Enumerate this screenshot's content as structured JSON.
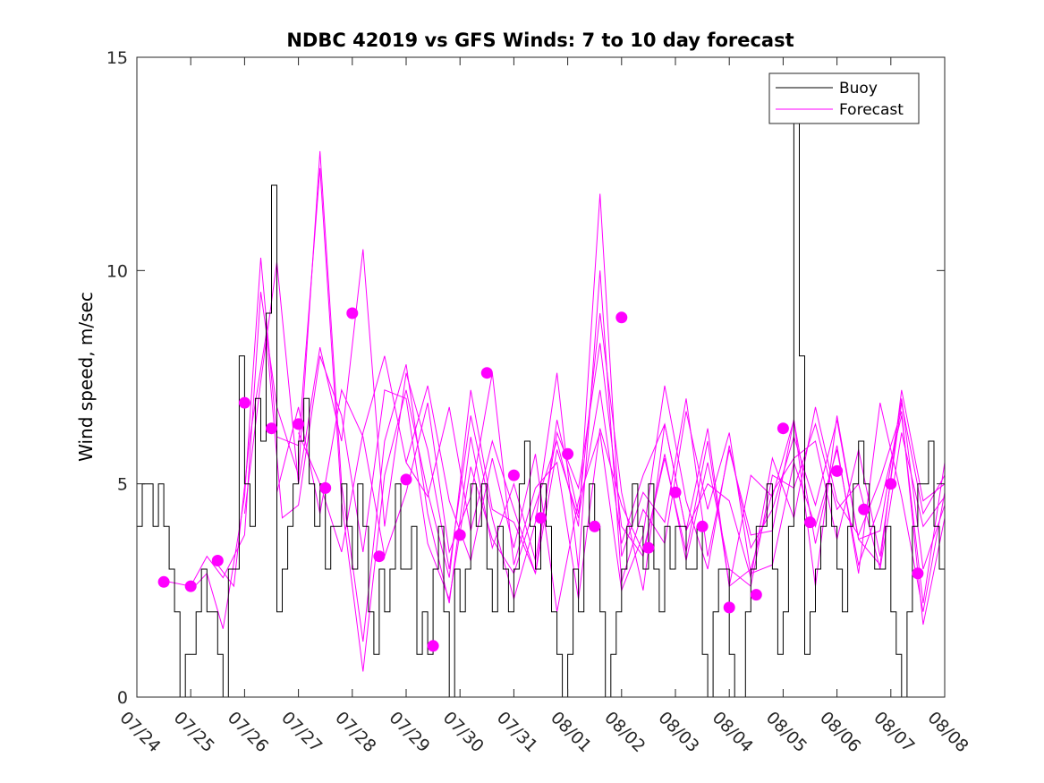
{
  "chart_data": {
    "type": "line",
    "title": "NDBC 42019 vs GFS Winds: 7 to 10 day forecast",
    "xlabel": "",
    "ylabel": "Wind speed, m/sec",
    "ylim": [
      0,
      15
    ],
    "yticks": [
      0,
      5,
      10,
      15
    ],
    "xlim_days": [
      0,
      15
    ],
    "xtick_labels": [
      "07/24",
      "07/25",
      "07/26",
      "07/27",
      "07/28",
      "07/29",
      "07/30",
      "07/31",
      "08/01",
      "08/02",
      "08/03",
      "08/04",
      "08/05",
      "08/06",
      "08/07",
      "08/08"
    ],
    "legend": {
      "placement": "top-right",
      "entries": [
        "Buoy",
        "Forecast"
      ]
    },
    "colors": {
      "buoy": "#000000",
      "forecast": "#ff00ff"
    },
    "series": [
      {
        "name": "Buoy",
        "style": "step",
        "x_days": [
          0.0,
          0.1,
          0.2,
          0.3,
          0.4,
          0.5,
          0.6,
          0.7,
          0.8,
          0.9,
          1.0,
          1.1,
          1.2,
          1.3,
          1.4,
          1.5,
          1.6,
          1.7,
          1.8,
          1.9,
          2.0,
          2.1,
          2.2,
          2.3,
          2.4,
          2.5,
          2.6,
          2.7,
          2.8,
          2.9,
          3.0,
          3.1,
          3.2,
          3.3,
          3.4,
          3.5,
          3.6,
          3.7,
          3.8,
          3.9,
          4.0,
          4.1,
          4.2,
          4.3,
          4.4,
          4.5,
          4.6,
          4.7,
          4.8,
          4.9,
          5.0,
          5.1,
          5.2,
          5.3,
          5.4,
          5.5,
          5.6,
          5.7,
          5.8,
          5.9,
          6.0,
          6.1,
          6.2,
          6.3,
          6.4,
          6.5,
          6.6,
          6.7,
          6.8,
          6.9,
          7.0,
          7.1,
          7.2,
          7.3,
          7.4,
          7.5,
          7.6,
          7.7,
          7.8,
          7.9,
          8.0,
          8.1,
          8.2,
          8.3,
          8.4,
          8.5,
          8.6,
          8.7,
          8.8,
          8.9,
          9.0,
          9.1,
          9.2,
          9.3,
          9.4,
          9.5,
          9.6,
          9.7,
          9.8,
          9.9,
          10.0,
          10.1,
          10.2,
          10.3,
          10.4,
          10.5,
          10.6,
          10.7,
          10.8,
          10.9,
          11.0,
          11.1,
          11.2,
          11.3,
          11.4,
          11.5,
          11.6,
          11.7,
          11.8,
          11.9,
          12.0,
          12.1,
          12.2,
          12.3,
          12.4,
          12.5,
          12.6,
          12.7,
          12.8,
          12.9,
          13.0,
          13.1,
          13.2,
          13.3,
          13.4,
          13.5,
          13.6,
          13.7,
          13.8,
          13.9,
          14.0,
          14.1,
          14.2,
          14.3,
          14.4,
          14.5,
          14.6,
          14.7,
          14.8,
          14.9,
          15.0
        ],
        "values": [
          4,
          5,
          5,
          4,
          5,
          4,
          3,
          2,
          0,
          1,
          1,
          2,
          3,
          2,
          2,
          1,
          0,
          3,
          3,
          8,
          5,
          4,
          7,
          6,
          9,
          12,
          2,
          3,
          4,
          5,
          6,
          7,
          5,
          4,
          5,
          3,
          4,
          4,
          5,
          4,
          3,
          5,
          4,
          2,
          1,
          3,
          2,
          3,
          5,
          3,
          3,
          4,
          1,
          2,
          1,
          3,
          4,
          2,
          0,
          3,
          2,
          3,
          5,
          4,
          5,
          3,
          2,
          4,
          3,
          2,
          3,
          5,
          6,
          4,
          3,
          5,
          4,
          2,
          1,
          0,
          1,
          3,
          2,
          4,
          5,
          4,
          2,
          0,
          1,
          2,
          3,
          4,
          5,
          4,
          3,
          5,
          3,
          2,
          4,
          3,
          4,
          4,
          3,
          3,
          4,
          1,
          0,
          2,
          3,
          3,
          1,
          0,
          0,
          2,
          3,
          4,
          4,
          5,
          3,
          1,
          2,
          4,
          14,
          8,
          1,
          2,
          3,
          4,
          5,
          4,
          3,
          2,
          4,
          5,
          6,
          5,
          4,
          3,
          3,
          4,
          2,
          1,
          0,
          2,
          4,
          5,
          5,
          6,
          4,
          3,
          5
        ]
      },
      {
        "name": "Forecast",
        "style": "line-ensemble",
        "members": [
          {
            "x_days": [
              0.6,
              1.0,
              1.3,
              1.6,
              2.0,
              2.3,
              2.6,
              3.0,
              3.4,
              3.8,
              4.2,
              4.6,
              5.0,
              5.4,
              5.8,
              6.2,
              6.6,
              7.0,
              7.4,
              7.8,
              8.2,
              8.6,
              9.0,
              9.4,
              9.8,
              10.2,
              10.6,
              11.0,
              11.4,
              11.8,
              12.2,
              12.6,
              13.0,
              13.4,
              13.8,
              14.2,
              14.6,
              15.0
            ],
            "values": [
              2.7,
              2.6,
              3.3,
              2.8,
              3.8,
              9.5,
              6.8,
              5.2,
              12.8,
              5.0,
              1.3,
              6.0,
              7.8,
              4.3,
              2.2,
              6.1,
              3.5,
              5.0,
              3.2,
              6.2,
              4.9,
              8.3,
              4.0,
              3.3,
              5.7,
              3.2,
              5.5,
              3.0,
              2.6,
              5.2,
              4.9,
              6.4,
              4.4,
              5.0,
              3.0,
              6.2,
              4.0,
              4.7
            ]
          },
          {
            "x_days": [
              1.0,
              1.3,
              1.6,
              2.0,
              2.3,
              2.6,
              3.0,
              3.4,
              3.8,
              4.2,
              4.6,
              5.0,
              5.4,
              5.8,
              6.2,
              6.6,
              7.0,
              7.4,
              7.8,
              8.2,
              8.6,
              9.0,
              9.4,
              9.8,
              10.2,
              10.6,
              11.0,
              11.4,
              11.8,
              12.2,
              12.6,
              13.0,
              13.4,
              13.8,
              14.2,
              14.6,
              15.0
            ],
            "values": [
              2.5,
              2.9,
              1.6,
              4.7,
              10.3,
              6.1,
              5.9,
              12.4,
              4.6,
              0.6,
              5.2,
              7.2,
              4.8,
              2.8,
              7.2,
              4.4,
              4.1,
              2.9,
              6.5,
              4.3,
              9.0,
              4.8,
              2.5,
              6.4,
              3.9,
              6.3,
              2.6,
              3.0,
              4.8,
              5.6,
              6.0,
              3.7,
              5.8,
              3.3,
              6.9,
              4.3,
              5.2
            ]
          },
          {
            "x_days": [
              1.5,
              1.8,
              2.1,
              2.4,
              2.7,
              3.0,
              3.4,
              3.8,
              4.2,
              4.6,
              5.0,
              5.4,
              5.8,
              6.2,
              6.6,
              7.0,
              7.4,
              7.8,
              8.2,
              8.6,
              9.0,
              9.4,
              9.8,
              10.2,
              10.6,
              11.0,
              11.4,
              11.8,
              12.2,
              12.6,
              13.0,
              13.4,
              13.8,
              14.2,
              14.6,
              15.0
            ],
            "values": [
              3.1,
              2.6,
              6.1,
              8.5,
              4.2,
              4.5,
              8.0,
              6.6,
              3.4,
              7.2,
              7.0,
              3.6,
              2.3,
              5.4,
              3.7,
              2.9,
              4.5,
              6.0,
              4.0,
              11.8,
              3.3,
              4.8,
              4.1,
              7.0,
              3.3,
              5.8,
              3.8,
              3.9,
              6.5,
              2.6,
              6.6,
              3.7,
              3.9,
              7.0,
              3.0,
              4.5
            ]
          },
          {
            "x_days": [
              2.0,
              2.3,
              2.6,
              3.0,
              3.4,
              3.8,
              4.2,
              4.6,
              5.0,
              5.4,
              5.8,
              6.2,
              6.6,
              7.0,
              7.4,
              7.8,
              8.2,
              8.6,
              9.0,
              9.4,
              9.8,
              10.2,
              10.6,
              11.0,
              11.4,
              11.8,
              12.2,
              12.6,
              13.0,
              13.4,
              13.8,
              14.2,
              14.6,
              15.0
            ],
            "values": [
              4.3,
              7.4,
              10.2,
              5.0,
              8.2,
              6.0,
              10.5,
              4.0,
              7.6,
              5.8,
              3.0,
              6.6,
              4.2,
              2.3,
              4.1,
              7.6,
              3.0,
              10.0,
              2.7,
              4.4,
              3.6,
              6.7,
              4.4,
              6.2,
              2.9,
              3.1,
              5.5,
              4.0,
              5.8,
              3.1,
              4.5,
              6.6,
              2.2,
              5.5
            ]
          },
          {
            "x_days": [
              2.6,
              3.0,
              3.4,
              3.8,
              4.2,
              4.6,
              5.0,
              5.4,
              5.8,
              6.2,
              6.6,
              7.0,
              7.4,
              7.8,
              8.2,
              8.6,
              9.0,
              9.4,
              9.8,
              10.2,
              10.6,
              11.0,
              11.4,
              11.8,
              12.2,
              12.6,
              13.0,
              13.4,
              13.8,
              14.2,
              14.6,
              15.0
            ],
            "values": [
              4.8,
              6.8,
              4.3,
              7.2,
              6.1,
              3.3,
              4.8,
              6.9,
              3.4,
              4.7,
              7.6,
              3.1,
              4.9,
              5.5,
              2.3,
              6.3,
              4.5,
              3.4,
              5.6,
              3.4,
              6.0,
              2.6,
              5.2,
              4.7,
              6.5,
              3.6,
              5.9,
              2.9,
              6.9,
              4.7,
              2.0,
              4.8
            ]
          },
          {
            "x_days": [
              3.0,
              3.4,
              3.8,
              4.2,
              4.6,
              5.0,
              5.4,
              5.8,
              6.2,
              6.6,
              7.0,
              7.4,
              7.8,
              8.2,
              8.6,
              9.0,
              9.4,
              9.8,
              10.2,
              10.6,
              11.0,
              11.4,
              11.8,
              12.2,
              12.6,
              13.0,
              13.4,
              13.8,
              14.2,
              14.6,
              15.0
            ],
            "values": [
              6.2,
              5.0,
              3.4,
              6.2,
              8.0,
              5.5,
              4.7,
              6.8,
              3.9,
              6.0,
              4.4,
              2.9,
              5.8,
              4.2,
              7.2,
              3.6,
              5.2,
              6.4,
              3.9,
              5.0,
              4.6,
              2.8,
              5.6,
              4.2,
              6.8,
              4.6,
              3.8,
              5.1,
              6.7,
              1.7,
              4.2
            ]
          },
          {
            "x_days": [
              5.0,
              5.4,
              5.8,
              6.2,
              6.6,
              7.0,
              7.4,
              7.8,
              8.2,
              8.6,
              9.0,
              9.4,
              9.8,
              10.2,
              10.6,
              11.0,
              11.4,
              11.8,
              12.2,
              12.6,
              13.0,
              13.4,
              13.8,
              14.2,
              14.6,
              15.0
            ],
            "values": [
              5.5,
              7.3,
              4.6,
              3.2,
              5.6,
              3.5,
              5.7,
              2.0,
              4.6,
              6.2,
              2.5,
              3.8,
              7.3,
              4.6,
              3.0,
              5.9,
              3.5,
              4.4,
              6.1,
              4.5,
              6.5,
              3.7,
              3.1,
              7.2,
              4.6,
              5.0
            ]
          }
        ]
      },
      {
        "name": "Forecast markers",
        "style": "markers",
        "x_days": [
          0.5,
          1.0,
          1.5,
          2.0,
          2.5,
          3.0,
          3.5,
          4.0,
          4.5,
          5.0,
          5.5,
          6.0,
          6.5,
          7.0,
          7.5,
          8.0,
          8.5,
          9.0,
          9.5,
          10.0,
          10.5,
          11.0,
          11.5,
          12.0,
          12.5,
          13.0,
          13.5,
          14.0,
          14.5
        ],
        "values": [
          2.7,
          2.6,
          3.2,
          6.9,
          6.3,
          6.4,
          4.9,
          9.0,
          3.3,
          5.1,
          1.2,
          3.8,
          7.6,
          5.2,
          4.2,
          5.7,
          4.0,
          8.9,
          3.5,
          4.8,
          4.0,
          2.1,
          2.4,
          6.3,
          4.1,
          5.3,
          4.4,
          5.0,
          2.9
        ]
      }
    ]
  }
}
